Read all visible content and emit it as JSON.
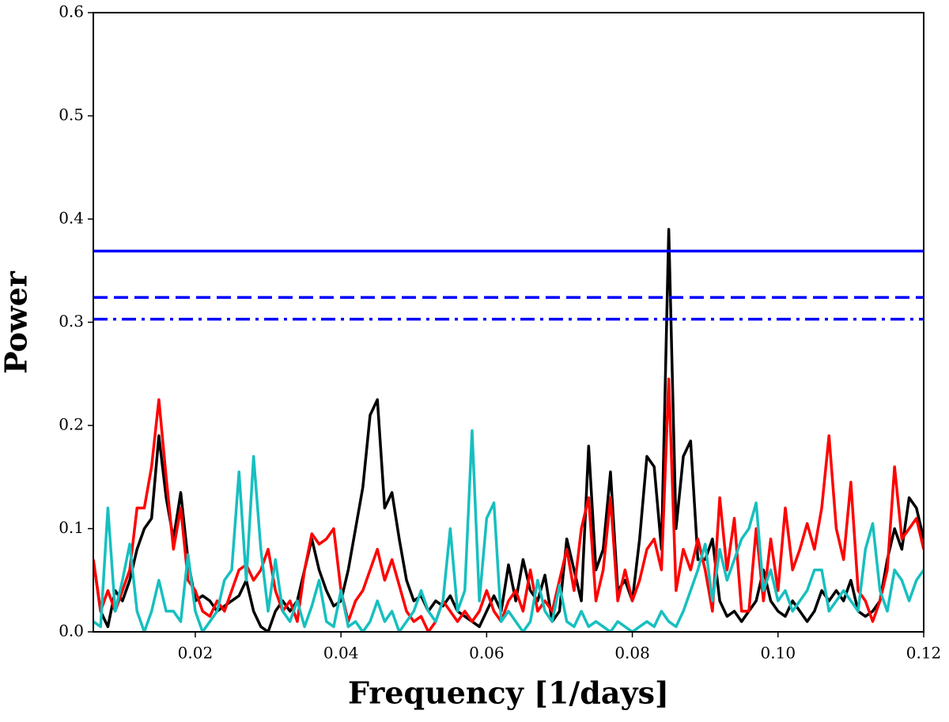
{
  "chart_data": {
    "type": "line",
    "xlabel": "Frequency [1/days]",
    "ylabel": "Power",
    "xlim": [
      0.006,
      0.12
    ],
    "ylim": [
      0,
      0.6
    ],
    "xticks": [
      0.02,
      0.04,
      0.06,
      0.08,
      {
        "value": 0.1,
        "label": "0.10"
      },
      0.12
    ],
    "yticks": [
      {
        "value": 0,
        "label": "0.0"
      },
      0.1,
      0.2,
      0.3,
      0.4,
      0.5,
      0.6
    ],
    "x": [
      0.006,
      0.007,
      0.008,
      0.009,
      0.01,
      0.011,
      0.012,
      0.013,
      0.014,
      0.015,
      0.016,
      0.017,
      0.018,
      0.019,
      0.02,
      0.021,
      0.022,
      0.023,
      0.024,
      0.025,
      0.026,
      0.027,
      0.028,
      0.029,
      0.03,
      0.031,
      0.032,
      0.033,
      0.034,
      0.035,
      0.036,
      0.037,
      0.038,
      0.039,
      0.04,
      0.041,
      0.042,
      0.043,
      0.044,
      0.045,
      0.046,
      0.047,
      0.048,
      0.049,
      0.05,
      0.051,
      0.052,
      0.053,
      0.054,
      0.055,
      0.056,
      0.057,
      0.058,
      0.059,
      0.06,
      0.061,
      0.062,
      0.063,
      0.064,
      0.065,
      0.066,
      0.067,
      0.068,
      0.069,
      0.07,
      0.071,
      0.072,
      0.073,
      0.074,
      0.075,
      0.076,
      0.077,
      0.078,
      0.079,
      0.08,
      0.081,
      0.082,
      0.083,
      0.084,
      0.085,
      0.086,
      0.087,
      0.088,
      0.089,
      0.09,
      0.091,
      0.092,
      0.093,
      0.094,
      0.095,
      0.096,
      0.097,
      0.098,
      0.099,
      0.1,
      0.101,
      0.102,
      0.103,
      0.104,
      0.105,
      0.106,
      0.107,
      0.108,
      0.109,
      0.11,
      0.111,
      0.112,
      0.113,
      0.114,
      0.115,
      0.116,
      0.117,
      0.118,
      0.119,
      0.12
    ],
    "series": [
      {
        "color": "#000000",
        "values": [
          0.07,
          0.02,
          0.005,
          0.04,
          0.03,
          0.05,
          0.08,
          0.1,
          0.11,
          0.19,
          0.13,
          0.09,
          0.135,
          0.07,
          0.03,
          0.035,
          0.03,
          0.02,
          0.025,
          0.03,
          0.035,
          0.05,
          0.02,
          0.005,
          0,
          0.02,
          0.03,
          0.02,
          0.03,
          0.06,
          0.09,
          0.06,
          0.04,
          0.025,
          0.03,
          0.06,
          0.1,
          0.14,
          0.21,
          0.225,
          0.12,
          0.135,
          0.09,
          0.05,
          0.03,
          0.035,
          0.02,
          0.03,
          0.025,
          0.035,
          0.02,
          0.015,
          0.01,
          0.005,
          0.02,
          0.035,
          0.02,
          0.065,
          0.03,
          0.07,
          0.04,
          0.03,
          0.055,
          0.01,
          0.02,
          0.09,
          0.06,
          0.03,
          0.18,
          0.06,
          0.08,
          0.155,
          0.04,
          0.05,
          0.03,
          0.09,
          0.17,
          0.16,
          0.08,
          0.39,
          0.1,
          0.17,
          0.185,
          0.07,
          0.07,
          0.09,
          0.03,
          0.015,
          0.02,
          0.01,
          0.02,
          0.03,
          0.06,
          0.03,
          0.02,
          0.015,
          0.03,
          0.02,
          0.01,
          0.02,
          0.04,
          0.03,
          0.04,
          0.03,
          0.05,
          0.02,
          0.015,
          0.02,
          0.03,
          0.07,
          0.1,
          0.08,
          0.13,
          0.12,
          0.09
        ]
      },
      {
        "color": "#ff0000",
        "values": [
          0.07,
          0.02,
          0.04,
          0.02,
          0.04,
          0.06,
          0.12,
          0.12,
          0.16,
          0.225,
          0.15,
          0.08,
          0.12,
          0.05,
          0.04,
          0.02,
          0.015,
          0.03,
          0.02,
          0.04,
          0.06,
          0.065,
          0.05,
          0.06,
          0.08,
          0.04,
          0.02,
          0.03,
          0.01,
          0.06,
          0.095,
          0.085,
          0.09,
          0.1,
          0.04,
          0.01,
          0.03,
          0.04,
          0.06,
          0.08,
          0.05,
          0.07,
          0.045,
          0.02,
          0.01,
          0.015,
          0,
          0.01,
          0.03,
          0.02,
          0.01,
          0.02,
          0.01,
          0.02,
          0.04,
          0.02,
          0.01,
          0.03,
          0.04,
          0.02,
          0.06,
          0.02,
          0.03,
          0.02,
          0.05,
          0.08,
          0.04,
          0.1,
          0.13,
          0.03,
          0.06,
          0.13,
          0.03,
          0.06,
          0.03,
          0.05,
          0.08,
          0.09,
          0.06,
          0.245,
          0.04,
          0.08,
          0.06,
          0.09,
          0.06,
          0.02,
          0.13,
          0.06,
          0.11,
          0.02,
          0.02,
          0.1,
          0.03,
          0.09,
          0.04,
          0.12,
          0.06,
          0.08,
          0.105,
          0.08,
          0.12,
          0.19,
          0.1,
          0.07,
          0.145,
          0.04,
          0.03,
          0.01,
          0.03,
          0.06,
          0.16,
          0.09,
          0.1,
          0.11,
          0.08
        ]
      },
      {
        "color": "#17bfbf",
        "values": [
          0.01,
          0.005,
          0.12,
          0.02,
          0.05,
          0.085,
          0.02,
          0,
          0.02,
          0.05,
          0.02,
          0.02,
          0.01,
          0.075,
          0.02,
          0,
          0.01,
          0.02,
          0.05,
          0.06,
          0.155,
          0.05,
          0.17,
          0.08,
          0.02,
          0.07,
          0.02,
          0.01,
          0.03,
          0.005,
          0.025,
          0.05,
          0.01,
          0.005,
          0.04,
          0.005,
          0.01,
          0,
          0.01,
          0.03,
          0.01,
          0.02,
          0,
          0.01,
          0.02,
          0.04,
          0.02,
          0.01,
          0.03,
          0.1,
          0.02,
          0.04,
          0.195,
          0.03,
          0.11,
          0.125,
          0.01,
          0.02,
          0.01,
          0,
          0.01,
          0.05,
          0.02,
          0.01,
          0.045,
          0.01,
          0.005,
          0.02,
          0.005,
          0.01,
          0.005,
          0,
          0.01,
          0.005,
          0,
          0.005,
          0.01,
          0.005,
          0.02,
          0.01,
          0.005,
          0.02,
          0.04,
          0.06,
          0.085,
          0.03,
          0.08,
          0.05,
          0.07,
          0.09,
          0.1,
          0.125,
          0.04,
          0.06,
          0.03,
          0.04,
          0.02,
          0.03,
          0.04,
          0.06,
          0.06,
          0.02,
          0.03,
          0.04,
          0.03,
          0.02,
          0.08,
          0.105,
          0.04,
          0.02,
          0.06,
          0.05,
          0.03,
          0.05,
          0.06
        ]
      }
    ],
    "hlines": [
      {
        "value": 0.369,
        "color": "#0000ff",
        "style": "solid"
      },
      {
        "value": 0.324,
        "color": "#0000ff",
        "style": "dashed"
      },
      {
        "value": 0.303,
        "color": "#0000ff",
        "style": "dashdot"
      }
    ]
  }
}
